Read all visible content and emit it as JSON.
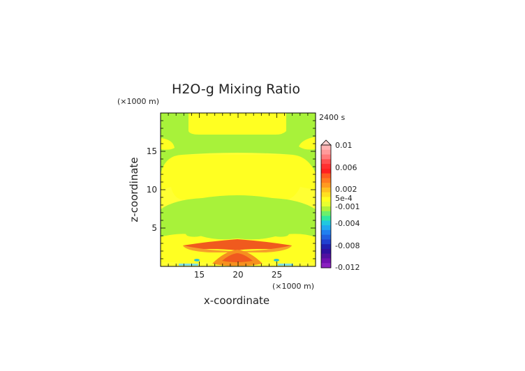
{
  "chart_data": {
    "type": "heatmap",
    "title": "H2O-g Mixing Ratio",
    "time_label": "2400 s",
    "xlabel": "x-coordinate",
    "ylabel": "z-coordinate",
    "x_unit": "(×1000 m)",
    "y_unit": "(×1000 m)",
    "xlim": [
      10,
      30
    ],
    "ylim": [
      0,
      20
    ],
    "x_ticks": [
      15,
      20,
      25
    ],
    "y_ticks": [
      5,
      10,
      15
    ],
    "colorbar": {
      "labels": [
        "0.01",
        "0.006",
        "0.002",
        "5e-4",
        "-0.001",
        "-0.004",
        "-0.008",
        "-0.012"
      ],
      "extend": "max"
    },
    "background_color": "#ffff00",
    "regions": [
      {
        "name": "upper green band",
        "color": "#a8f23a"
      },
      {
        "name": "top yellow column",
        "color": "#ffff22"
      },
      {
        "name": "middle yellow band",
        "color": "#ffff22"
      },
      {
        "name": "mid green dome",
        "color": "#a8f23a"
      },
      {
        "name": "low yellow layer",
        "color": "#ffff22"
      },
      {
        "name": "red-orange lens",
        "color": "#f05a1e"
      },
      {
        "name": "orange core",
        "color": "#f6901f"
      },
      {
        "name": "near-surface blue spots",
        "color": "#22bfd6"
      }
    ]
  }
}
